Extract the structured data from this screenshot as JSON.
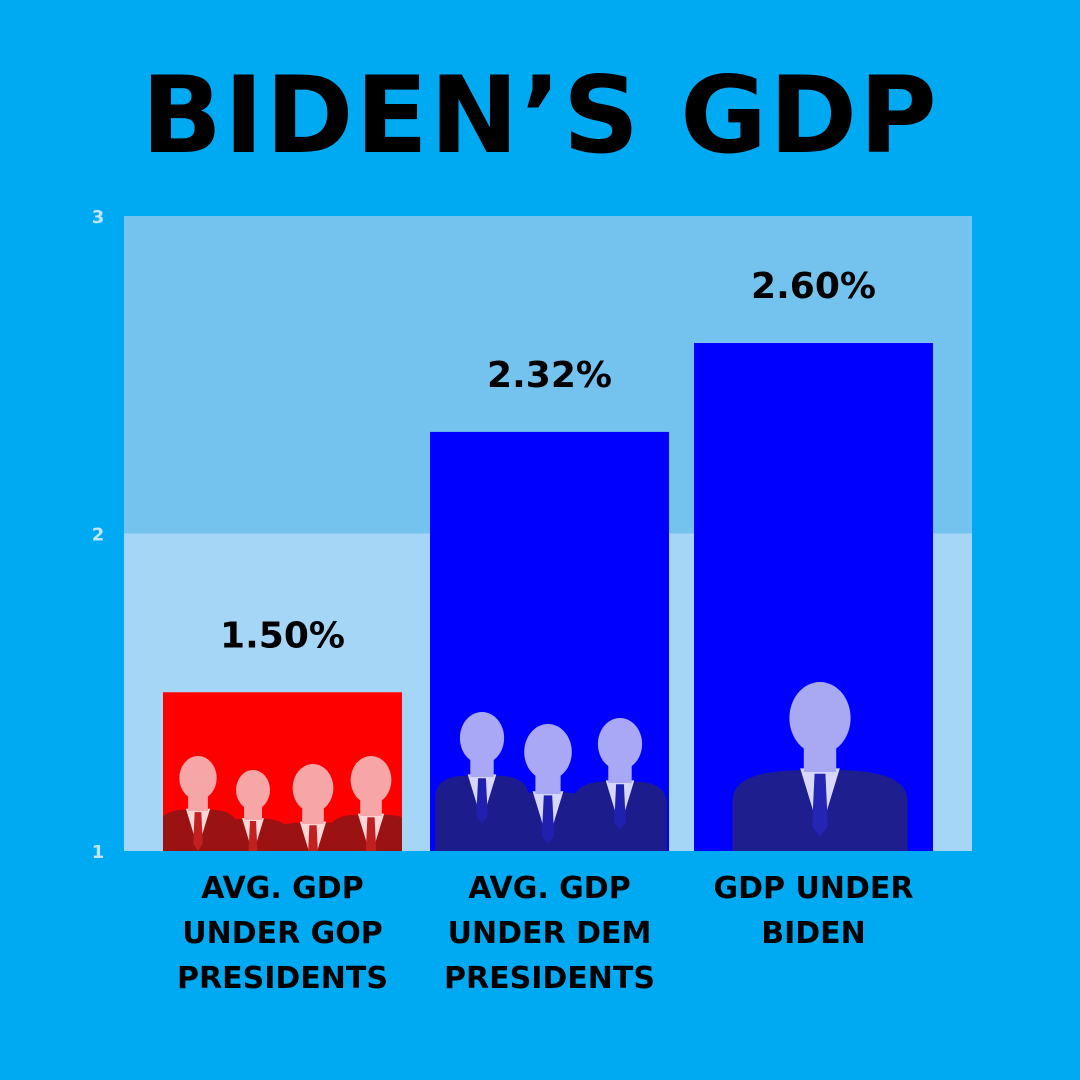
{
  "chart_data": {
    "type": "bar",
    "title": "BIDEN’S GDP",
    "categories": [
      "AVG. GDP UNDER GOP PRESIDENTS",
      "AVG. GDP UNDER DEM PRESIDENTS",
      "GDP UNDER BIDEN"
    ],
    "values": [
      1.5,
      2.32,
      2.6
    ],
    "data_labels": [
      "1.50%",
      "2.32%",
      "2.60%"
    ],
    "bar_colors": [
      "#FF0000",
      "#0000FF",
      "#0000FF"
    ],
    "ylim": [
      1,
      3
    ],
    "yticks": [
      1,
      2,
      3
    ],
    "grid": false,
    "legend": "none",
    "xlabel": "",
    "ylabel": ""
  },
  "colors": {
    "background": "#00AAF2",
    "band_upper": "#74C3EE",
    "band_lower": "#A6D6F6"
  },
  "icons": [
    "gop-presidents-photo",
    "dem-presidents-photo",
    "biden-photo"
  ]
}
